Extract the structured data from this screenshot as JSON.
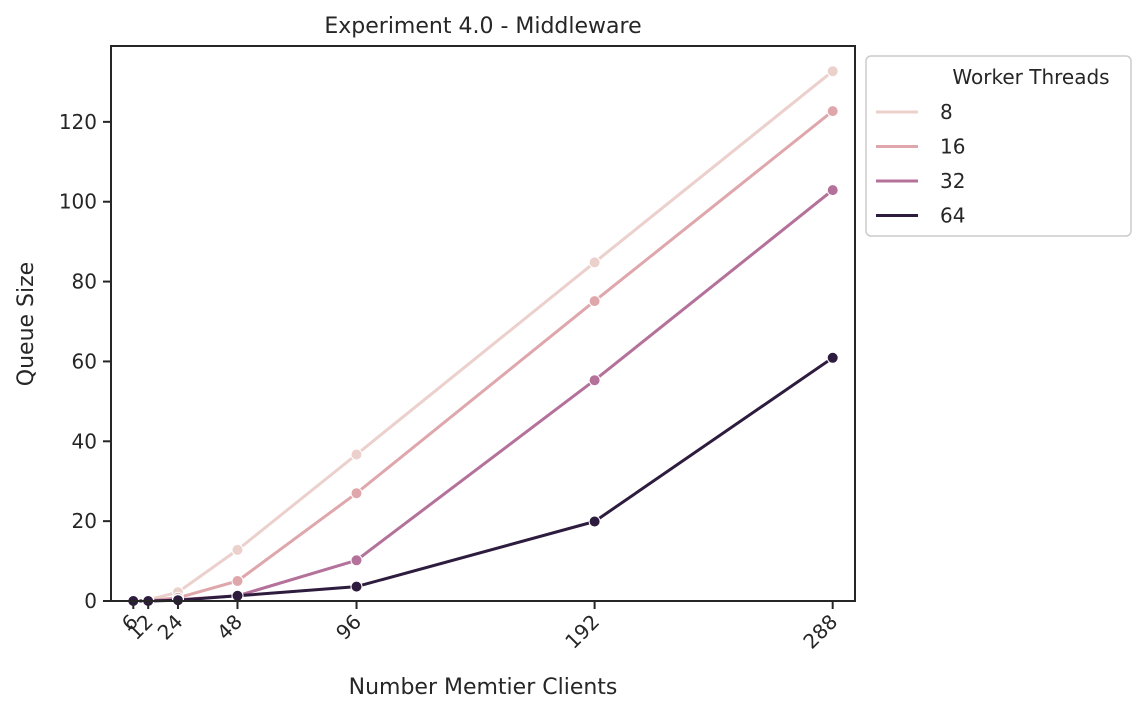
{
  "chart_data": {
    "type": "line",
    "title": "Experiment 4.0 - Middleware",
    "xlabel": "Number Memtier Clients",
    "ylabel": "Queue Size",
    "x": [
      6,
      12,
      24,
      48,
      96,
      192,
      288
    ],
    "x_tick_labels": [
      "6",
      "12",
      "24",
      "48",
      "96",
      "192",
      "288"
    ],
    "y_ticks": [
      0,
      20,
      40,
      60,
      80,
      100,
      120
    ],
    "y_tick_labels": [
      "0",
      "20",
      "40",
      "60",
      "80",
      "100",
      "120"
    ],
    "xlim": [
      -3,
      297
    ],
    "ylim": [
      0,
      139
    ],
    "grid": false,
    "legend": {
      "title": "Worker Threads",
      "placement": "outside-top-right"
    },
    "series": [
      {
        "name": "8",
        "color": "#ebd0cc",
        "values": [
          0.0,
          0.3,
          2.2,
          12.8,
          36.7,
          84.8,
          132.7
        ]
      },
      {
        "name": "16",
        "color": "#dfa7ab",
        "values": [
          0.0,
          0.1,
          0.8,
          5.0,
          27.0,
          75.1,
          122.7
        ]
      },
      {
        "name": "32",
        "color": "#b4719a",
        "values": [
          0.0,
          0.0,
          0.3,
          1.3,
          10.2,
          55.3,
          102.9
        ]
      },
      {
        "name": "64",
        "color": "#2e1c3f",
        "values": [
          0.0,
          0.0,
          0.2,
          1.3,
          3.6,
          19.9,
          60.9
        ]
      }
    ]
  }
}
